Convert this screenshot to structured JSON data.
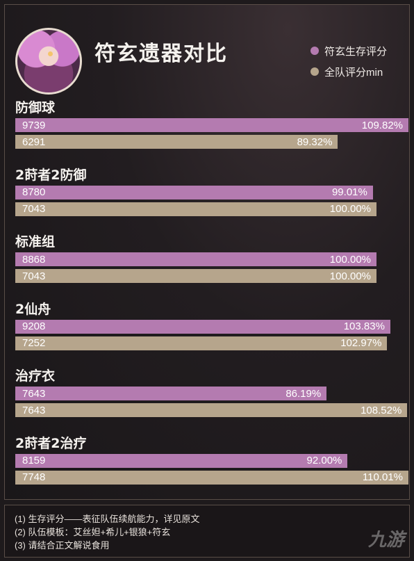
{
  "header": {
    "title": "符玄遗器对比"
  },
  "legend": [
    {
      "label": "符玄生存评分",
      "color": "#b47bb0"
    },
    {
      "label": "全队评分min",
      "color": "#b6a58c"
    }
  ],
  "chart_data": {
    "type": "bar",
    "orientation": "horizontal",
    "title": "符玄遗器对比",
    "categories": [
      "防御球",
      "2莳者2防御",
      "标准组",
      "2仙舟",
      "治疗衣",
      "2莳者2治疗"
    ],
    "series": [
      {
        "name": "符玄生存评分",
        "values": [
          9739,
          8780,
          8868,
          9208,
          7643,
          8159
        ],
        "percent_labels": [
          "109.82%",
          "99.01%",
          "100.00%",
          "103.83%",
          "86.19%",
          "92.00%"
        ]
      },
      {
        "name": "全队评分min",
        "values": [
          6291,
          7043,
          7043,
          7252,
          7643,
          7748
        ],
        "percent_labels": [
          "89.32%",
          "100.00%",
          "100.00%",
          "102.97%",
          "108.52%",
          "110.01%"
        ]
      }
    ],
    "percent_values": {
      "符玄生存评分": [
        109.82,
        99.01,
        100.0,
        103.83,
        86.19,
        92.0
      ],
      "全队评分min": [
        89.32,
        100.0,
        100.0,
        102.97,
        108.52,
        110.01
      ]
    },
    "legend_position": "top-right",
    "grid": false
  },
  "notes": [
    "(1) 生存评分——表征队伍续航能力，详见原文",
    "(2) 队伍模板：艾丝妲+希儿+银狼+符玄",
    "(3) 请结合正文解说食用"
  ],
  "watermark": "九游"
}
